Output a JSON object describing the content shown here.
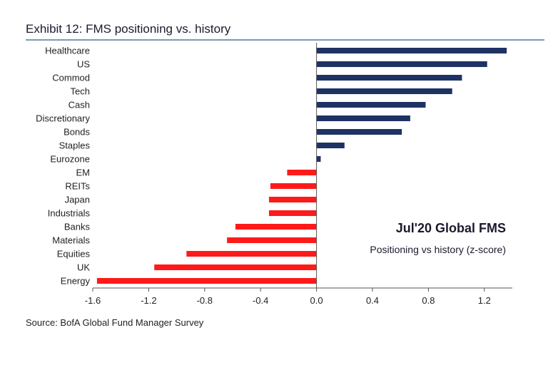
{
  "header": {
    "title": "Exhibit 12: FMS positioning vs. history"
  },
  "footer": {
    "source": "Source: BofA Global Fund Manager Survey"
  },
  "colors": {
    "positive": "#1f3264",
    "negative": "#ff1a1a",
    "axis": "#555555",
    "title_rule": "#7a9bb5"
  },
  "chart_data": {
    "type": "bar",
    "orientation": "horizontal",
    "categories": [
      "Healthcare",
      "US",
      "Commod",
      "Tech",
      "Cash",
      "Discretionary",
      "Bonds",
      "Staples",
      "Eurozone",
      "EM",
      "REITs",
      "Japan",
      "Industrials",
      "Banks",
      "Materials",
      "Equities",
      "UK",
      "Energy"
    ],
    "values": [
      1.36,
      1.22,
      1.04,
      0.97,
      0.78,
      0.67,
      0.61,
      0.2,
      0.03,
      -0.21,
      -0.33,
      -0.34,
      -0.34,
      -0.58,
      -0.64,
      -0.93,
      -1.16,
      -1.57
    ],
    "xlim": [
      -1.6,
      1.4
    ],
    "xticks": [
      "-1.6",
      "-1.2",
      "-0.8",
      "-0.4",
      "0.0",
      "0.4",
      "0.8",
      "1.2"
    ],
    "xtick_values": [
      -1.6,
      -1.2,
      -0.8,
      -0.4,
      0.0,
      0.4,
      0.8,
      1.2
    ],
    "annotation": {
      "title": "Jul'20 Global FMS",
      "subtitle": "Positioning vs history (z-score)"
    },
    "grid": false,
    "legend": "none"
  }
}
